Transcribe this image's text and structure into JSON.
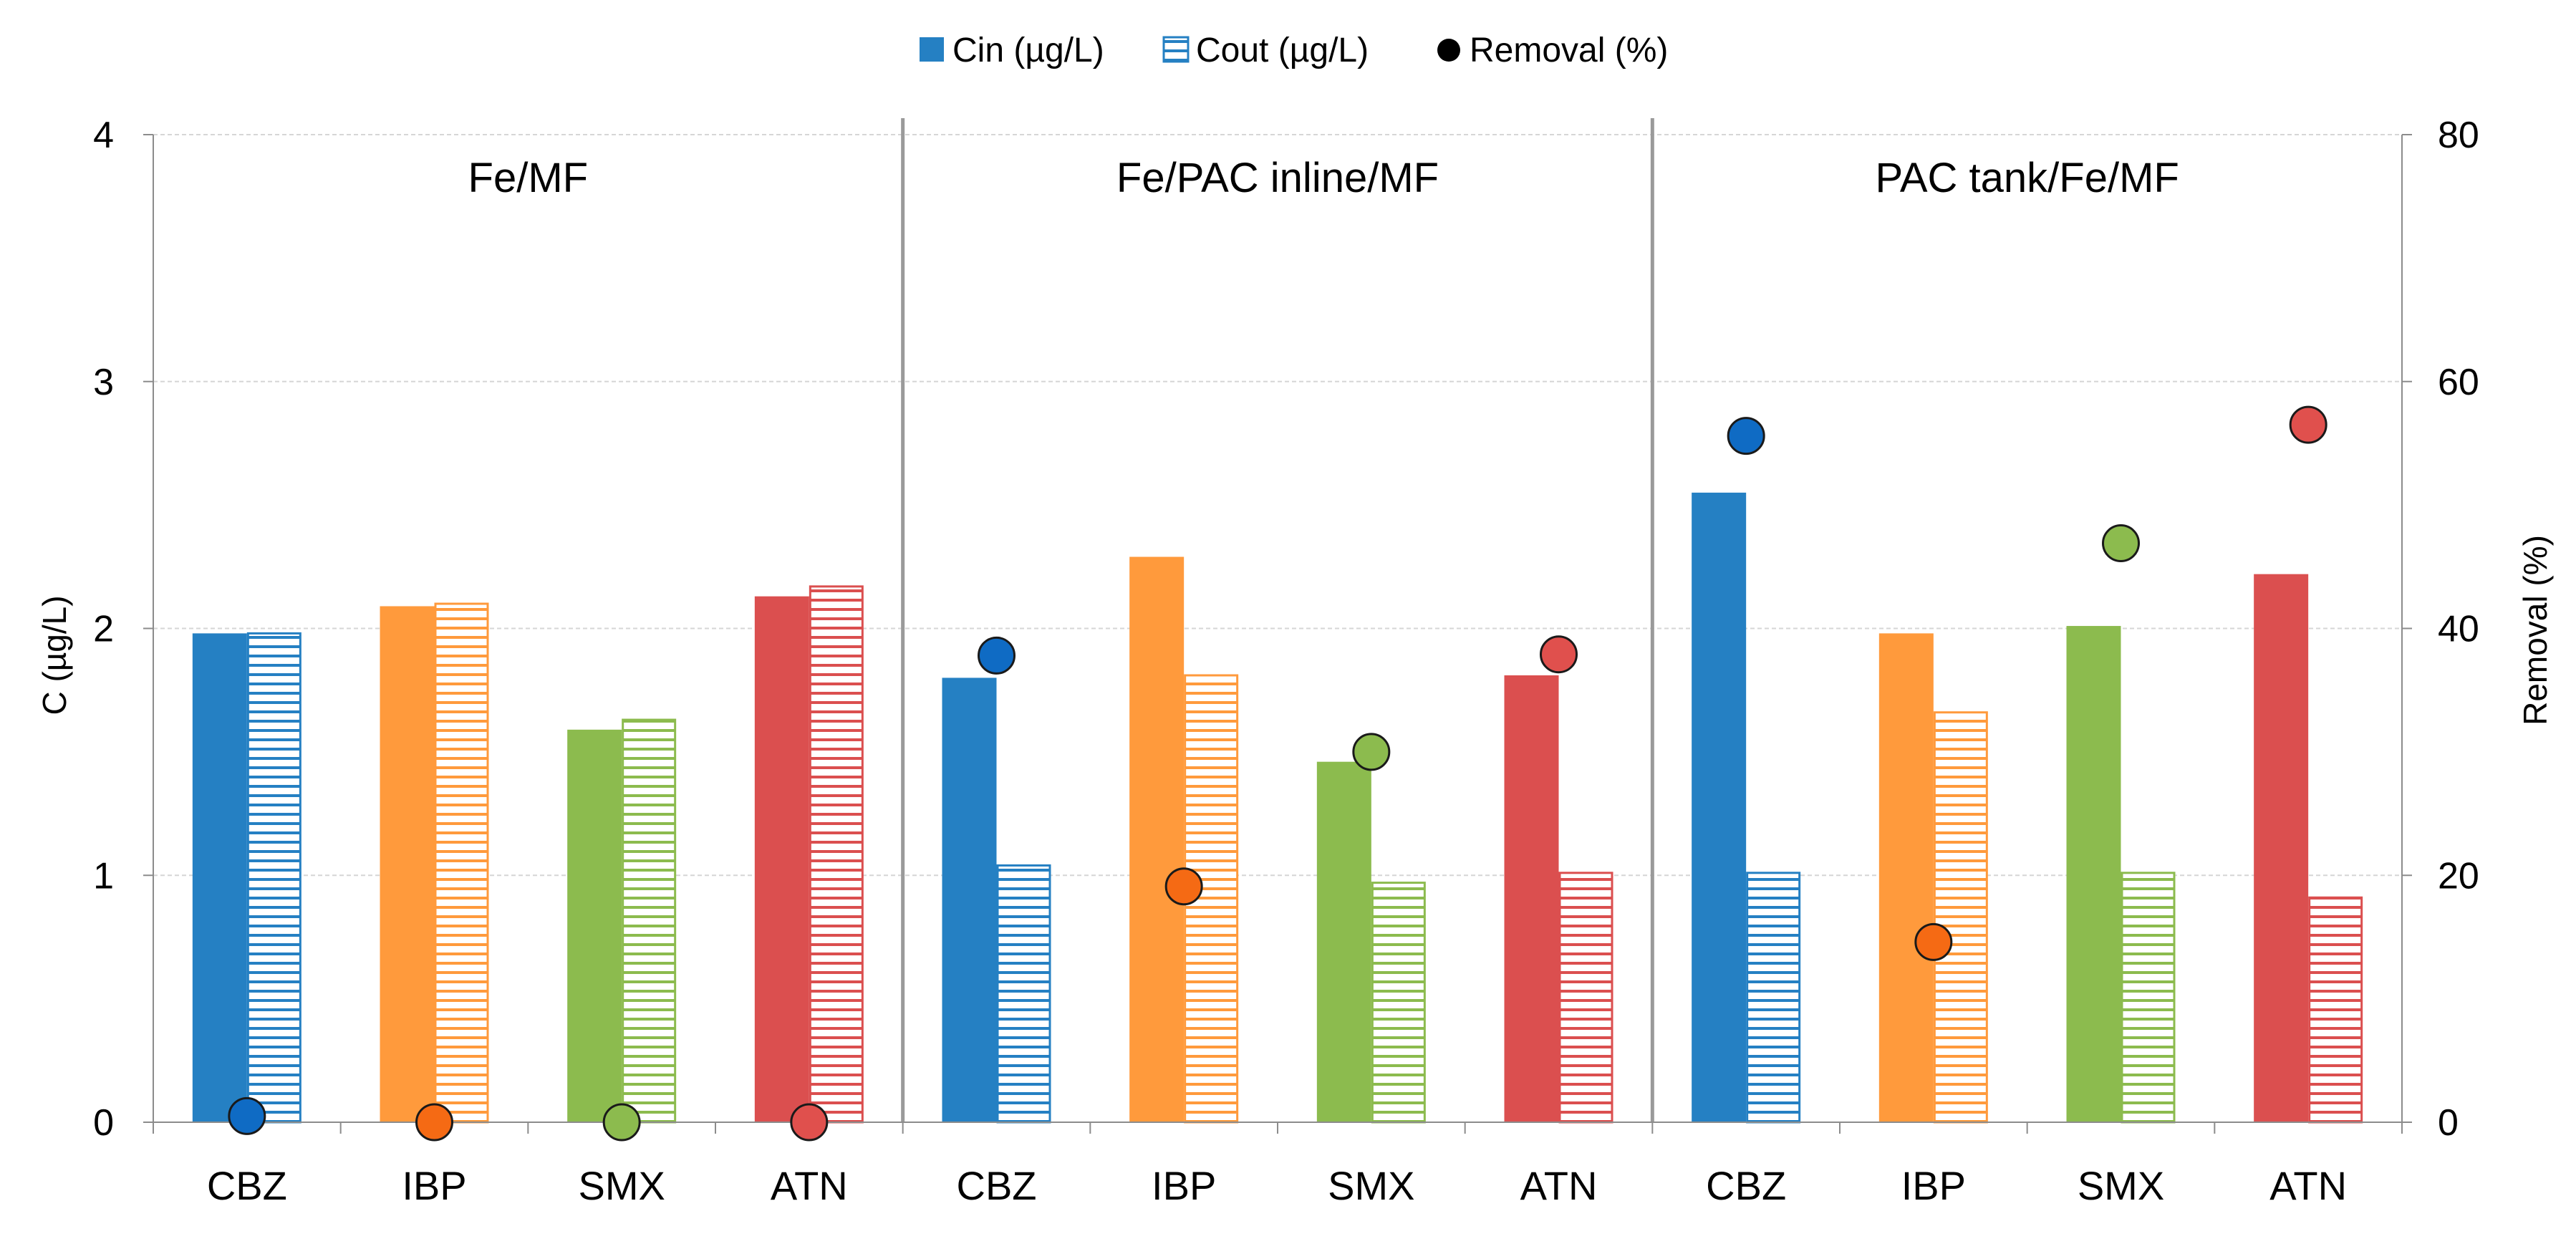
{
  "chart_data": {
    "type": "bar",
    "title": "",
    "ylabel": "C (µg/L)",
    "y2label": "Removal (%)",
    "ylim": [
      0,
      4
    ],
    "y2lim": [
      0,
      80
    ],
    "yticks": [
      "0",
      "1",
      "2",
      "3",
      "4"
    ],
    "y2ticks": [
      "0",
      "20",
      "40",
      "60",
      "80"
    ],
    "grid": true,
    "legend_position": "top-center",
    "legend": {
      "cin": "Cin (µg/L)",
      "cout": "Cout (µg/L)",
      "removal": "Removal (%)"
    },
    "compound_colors": {
      "CBZ": "#2580c3",
      "IBP": "#ff9a3c",
      "SMX": "#8cbb4e",
      "ATN": "#db4f4f"
    },
    "marker_colors": {
      "CBZ": "#0f6bc4",
      "IBP": "#f56a14",
      "SMX": "#8cbb4e",
      "ATN": "#e0504d"
    },
    "panels": [
      {
        "label": "Fe/MF",
        "categories": [
          "CBZ",
          "IBP",
          "SMX",
          "ATN"
        ],
        "cin": [
          1.98,
          2.09,
          1.59,
          2.13
        ],
        "cout": [
          1.98,
          2.1,
          1.63,
          2.17
        ],
        "removal": [
          0.5,
          0,
          0,
          0
        ]
      },
      {
        "label": "Fe/PAC inline/MF",
        "categories": [
          "CBZ",
          "IBP",
          "SMX",
          "ATN"
        ],
        "cin": [
          1.8,
          2.29,
          1.46,
          1.81
        ],
        "cout": [
          1.04,
          1.81,
          0.97,
          1.01
        ],
        "removal": [
          37.8,
          19.1,
          30.0,
          37.9
        ]
      },
      {
        "label": "PAC tank/Fe/MF",
        "categories": [
          "CBZ",
          "IBP",
          "SMX",
          "ATN"
        ],
        "cin": [
          2.55,
          1.98,
          2.01,
          2.22
        ],
        "cout": [
          1.01,
          1.66,
          1.01,
          0.91
        ],
        "removal": [
          55.6,
          14.6,
          46.9,
          56.5
        ]
      }
    ]
  }
}
